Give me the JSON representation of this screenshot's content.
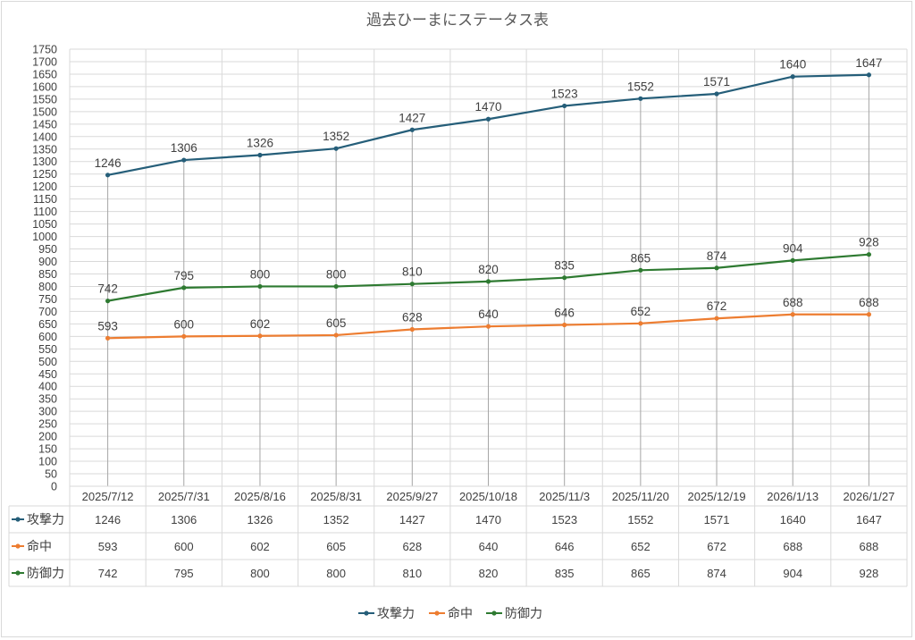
{
  "chart_data": {
    "type": "line",
    "title": "過去ひーまにステータス表",
    "categories": [
      "2025/7/12",
      "2025/7/31",
      "2025/8/16",
      "2025/8/31",
      "2025/9/27",
      "2025/10/18",
      "2025/11/3",
      "2025/11/20",
      "2025/12/19",
      "2026/1/13",
      "2026/1/27"
    ],
    "ylim": [
      0,
      1750
    ],
    "ytick_step": 50,
    "grid": true,
    "legend_position": "bottom",
    "data_table": true,
    "series": [
      {
        "name": "攻撃力",
        "color": "#255e79",
        "values": [
          1246,
          1306,
          1326,
          1352,
          1427,
          1470,
          1523,
          1552,
          1571,
          1640,
          1647
        ]
      },
      {
        "name": "命中",
        "color": "#ed7d31",
        "values": [
          593,
          600,
          602,
          605,
          628,
          640,
          646,
          652,
          672,
          688,
          688
        ]
      },
      {
        "name": "防御力",
        "color": "#2e7a31",
        "values": [
          742,
          795,
          800,
          800,
          810,
          820,
          835,
          865,
          874,
          904,
          928
        ]
      }
    ]
  }
}
